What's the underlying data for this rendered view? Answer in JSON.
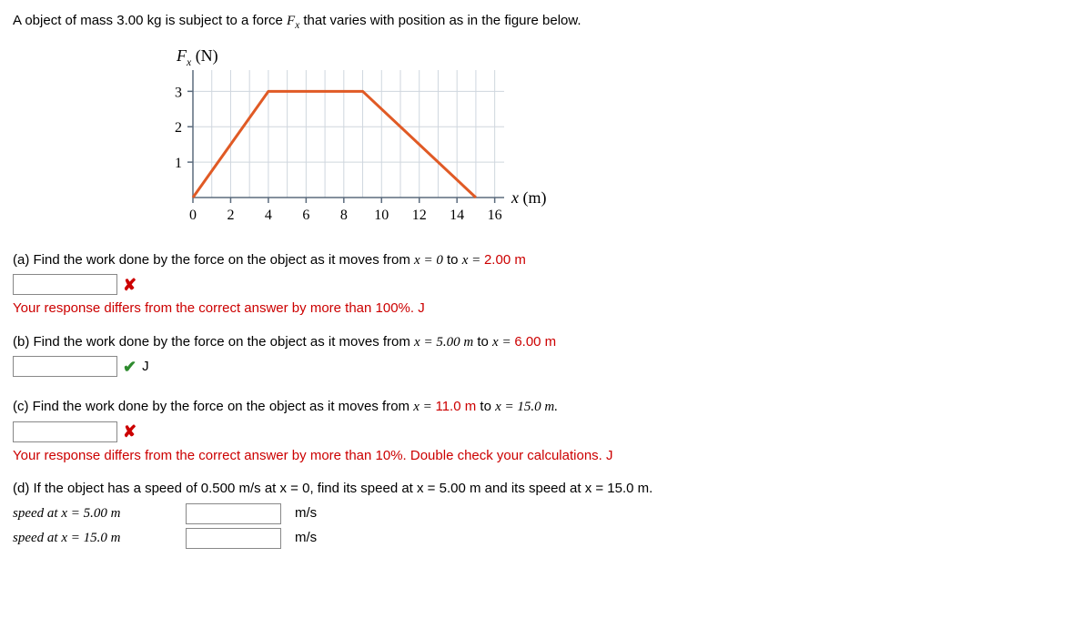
{
  "problem": {
    "intro_pre": "A object of mass ",
    "mass": "3.00 kg",
    "intro_mid": " is subject to a force ",
    "force_symbol": "F",
    "force_sub": "x",
    "intro_post": " that varies with position as in the figure below."
  },
  "chart": {
    "type": "line",
    "x_values": [
      0,
      4,
      9,
      15
    ],
    "y_values": [
      0,
      3,
      3,
      0
    ],
    "line_color": "#e05a25",
    "line_width": 3,
    "grid_color": "#cfd6de",
    "axis_color": "#5b6b7d",
    "background": "#ffffff",
    "xlim": [
      0,
      16.5
    ],
    "ylim": [
      0,
      3.6
    ],
    "xticks": [
      0,
      2,
      4,
      6,
      8,
      10,
      12,
      14,
      16
    ],
    "yticks": [
      1,
      2,
      3
    ],
    "xlabel": "x (m)",
    "ylabel": "F_x (N)",
    "axis_label_fontsize": 18,
    "tick_fontsize": 16
  },
  "parts": {
    "a": {
      "text_pre": "(a) Find the work done by the force on the object as it moves from ",
      "x_from": "x = 0",
      "to_word": " to ",
      "x_to": "x = ",
      "x_to_val": "2.00 m",
      "feedback": "Your response differs from the correct answer by more than 100%. J",
      "status": "wrong"
    },
    "b": {
      "text_pre": "(b) Find the work done by the force on the object as it moves from ",
      "x_from": "x = 5.00 m",
      "to_word": " to ",
      "x_to_pre": "x = ",
      "x_to_val": "6.00 m",
      "unit": "J",
      "status": "correct"
    },
    "c": {
      "text_pre": "(c) Find the work done by the force on the object as it moves from ",
      "x_from": "x = ",
      "x_from_val": "11.0 m",
      "to_word": " to ",
      "x_to": "x = 15.0 m.",
      "feedback": "Your response differs from the correct answer by more than 10%. Double check your calculations. J",
      "status": "wrong"
    },
    "d": {
      "text": "(d) If the object has a speed of 0.500 m/s at x = 0, find its speed at x = 5.00 m and its speed at x = 15.0 m.",
      "row1_label": "speed at x = 5.00 m",
      "row2_label": "speed at x = 15.0 m",
      "unit": "m/s"
    }
  }
}
